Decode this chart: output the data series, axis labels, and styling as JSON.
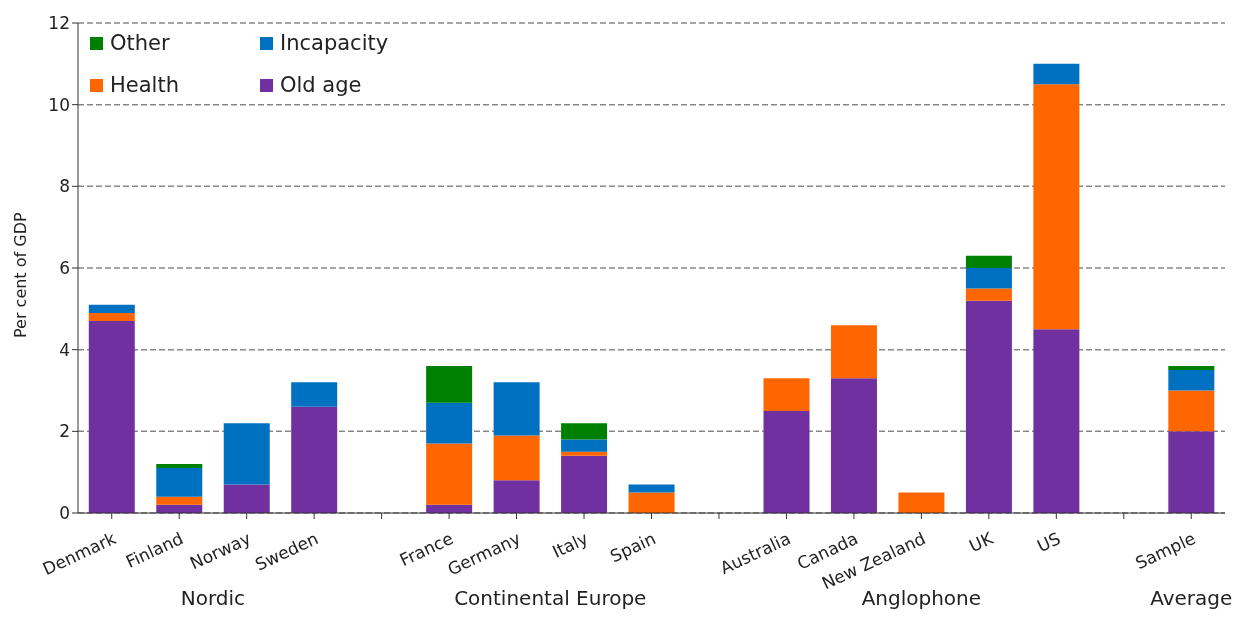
{
  "chart_data": {
    "type": "bar",
    "stacked": true,
    "ylabel": "Per cent of GDP",
    "categories": [
      "Denmark",
      "Finland",
      "Norway",
      "Sweden",
      null,
      "France",
      "Germany",
      "Italy",
      "Spain",
      null,
      "Australia",
      "Canada",
      "New Zealand",
      "UK",
      "US",
      null,
      "Sample"
    ],
    "series": [
      {
        "name": "Old age",
        "color": "#7030a0",
        "values": [
          4.7,
          0.2,
          0.7,
          2.6,
          null,
          0.2,
          0.8,
          1.4,
          0,
          null,
          2.5,
          3.3,
          0,
          5.2,
          4.5,
          null,
          2.0
        ]
      },
      {
        "name": "Health",
        "color": "#ff6600",
        "values": [
          0.2,
          0.2,
          0,
          0,
          null,
          1.5,
          1.1,
          0.1,
          0.5,
          null,
          0.8,
          1.3,
          0.5,
          0.3,
          6.0,
          null,
          1.0
        ]
      },
      {
        "name": "Incapacity",
        "color": "#0070c0",
        "values": [
          0.2,
          0.7,
          1.5,
          0.6,
          null,
          1.0,
          1.3,
          0.3,
          0.2,
          null,
          0,
          0,
          0,
          0.5,
          0.5,
          null,
          0.5
        ]
      },
      {
        "name": "Other",
        "color": "#008000",
        "values": [
          0,
          0.1,
          0,
          0,
          null,
          0.9,
          0,
          0.4,
          0,
          null,
          0,
          0,
          0,
          0.3,
          0,
          null,
          0.1
        ]
      }
    ],
    "annotations": [
      "Nordic",
      "Continental Europe",
      "Anglophone",
      "Average"
    ],
    "ylim": [
      0,
      12
    ],
    "yticks": [
      0,
      2,
      4,
      6,
      8,
      10,
      12
    ],
    "grid": "y",
    "legend": "top left"
  }
}
